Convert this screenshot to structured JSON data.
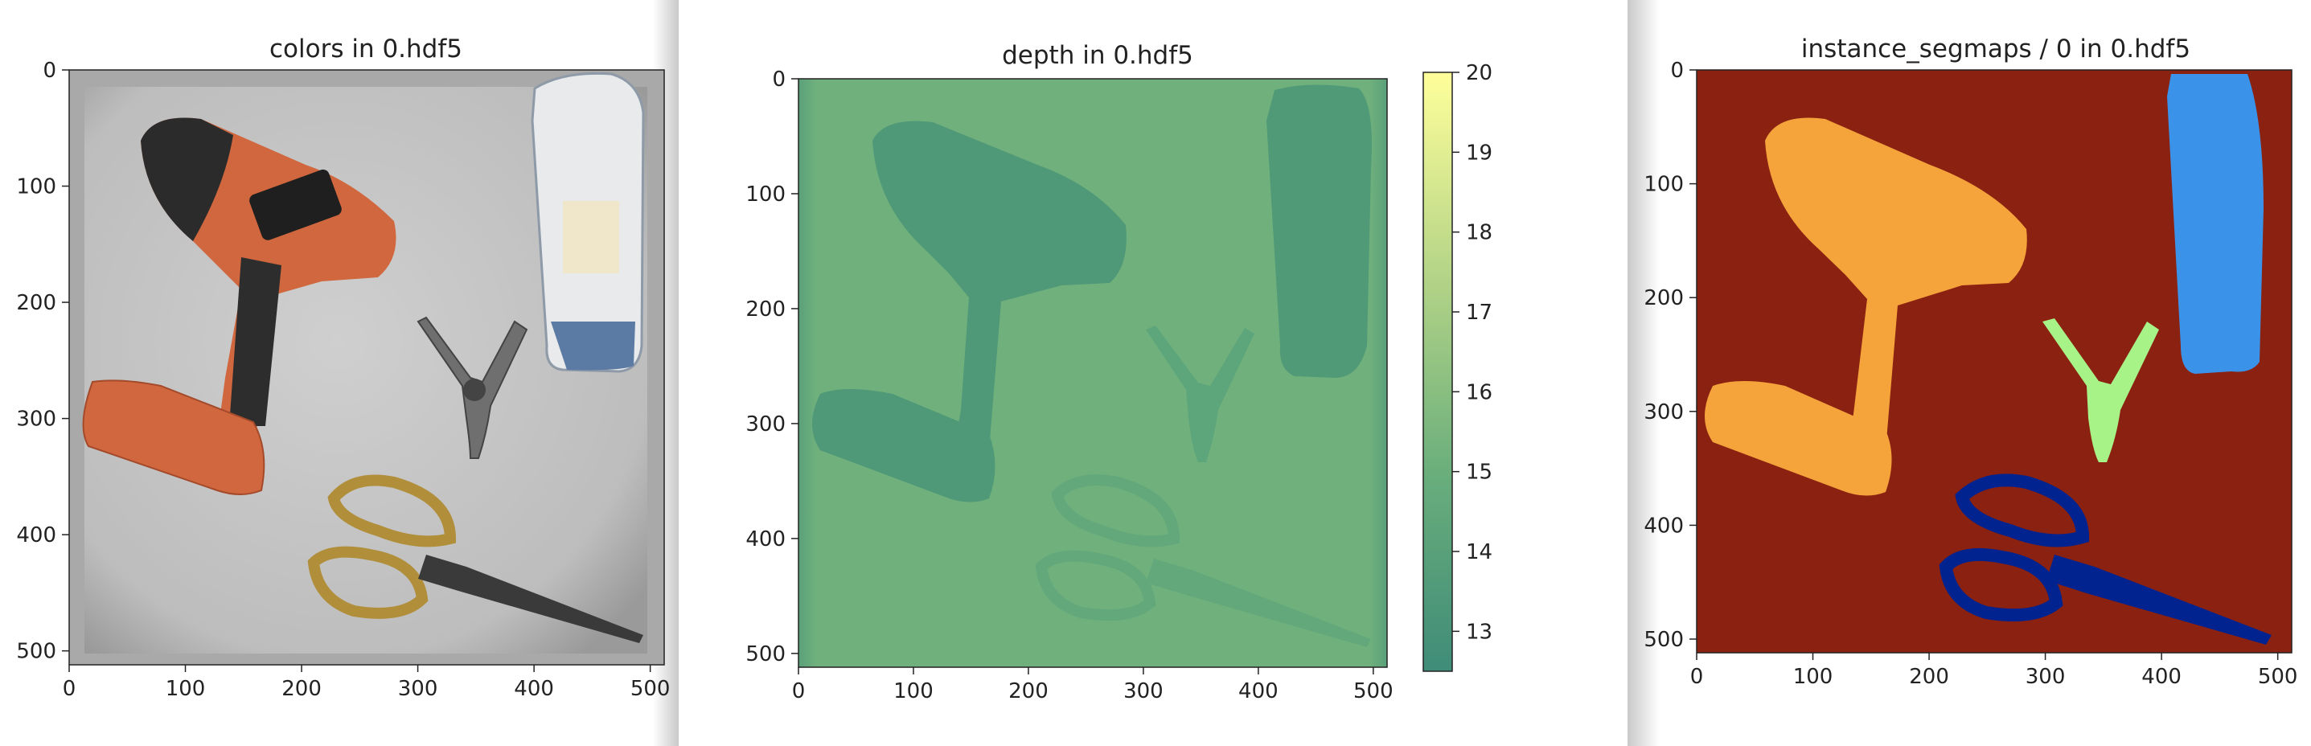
{
  "figure": {
    "panels": [
      {
        "title": "colors in 0.hdf5"
      },
      {
        "title": "depth in 0.hdf5"
      },
      {
        "title": "instance_segmaps / 0 in 0.hdf5"
      }
    ]
  },
  "chart_data": [
    {
      "type": "heatmap",
      "title": "colors in 0.hdf5",
      "xlabel": "",
      "ylabel": "",
      "xlim": [
        0,
        512
      ],
      "ylim": [
        512,
        0
      ],
      "x_ticks": [
        0,
        100,
        200,
        300,
        400,
        500
      ],
      "y_ticks": [
        0,
        100,
        200,
        300,
        400,
        500
      ],
      "content": "RGB render: cordless drill, bottle, spring clamp, scissors on gray tray",
      "colors": {
        "background": "#c4c4c4",
        "drill": "#d0673e",
        "grip": "#2a2a2a",
        "bottle": "#e6e8ea"
      }
    },
    {
      "type": "heatmap",
      "title": "depth in 0.hdf5",
      "xlabel": "",
      "ylabel": "",
      "xlim": [
        0,
        512
      ],
      "ylim": [
        512,
        0
      ],
      "x_ticks": [
        0,
        100,
        200,
        300,
        400,
        500
      ],
      "y_ticks": [
        0,
        100,
        200,
        300,
        400,
        500
      ],
      "colormap": "summer_r",
      "colorbar": {
        "min": 12.5,
        "max": 20,
        "ticks": [
          13,
          14,
          15,
          16,
          17,
          18,
          19,
          20
        ]
      },
      "colors": {
        "background_depth": "#6fb07c",
        "object_depth": "#4f9878",
        "cmap_low": "#3f8c78",
        "cmap_high": "#ffff9a"
      }
    },
    {
      "type": "heatmap",
      "title": "instance_segmaps / 0 in 0.hdf5",
      "xlabel": "",
      "ylabel": "",
      "xlim": [
        0,
        512
      ],
      "ylim": [
        512,
        0
      ],
      "x_ticks": [
        0,
        100,
        200,
        300,
        400,
        500
      ],
      "y_ticks": [
        0,
        100,
        200,
        300,
        400,
        500
      ],
      "colors": {
        "background": "#8b2111",
        "drill": "#f4a43a",
        "bottle": "#3b93e9",
        "clamp": "#a7f388",
        "scissors": "#00238f"
      }
    }
  ]
}
